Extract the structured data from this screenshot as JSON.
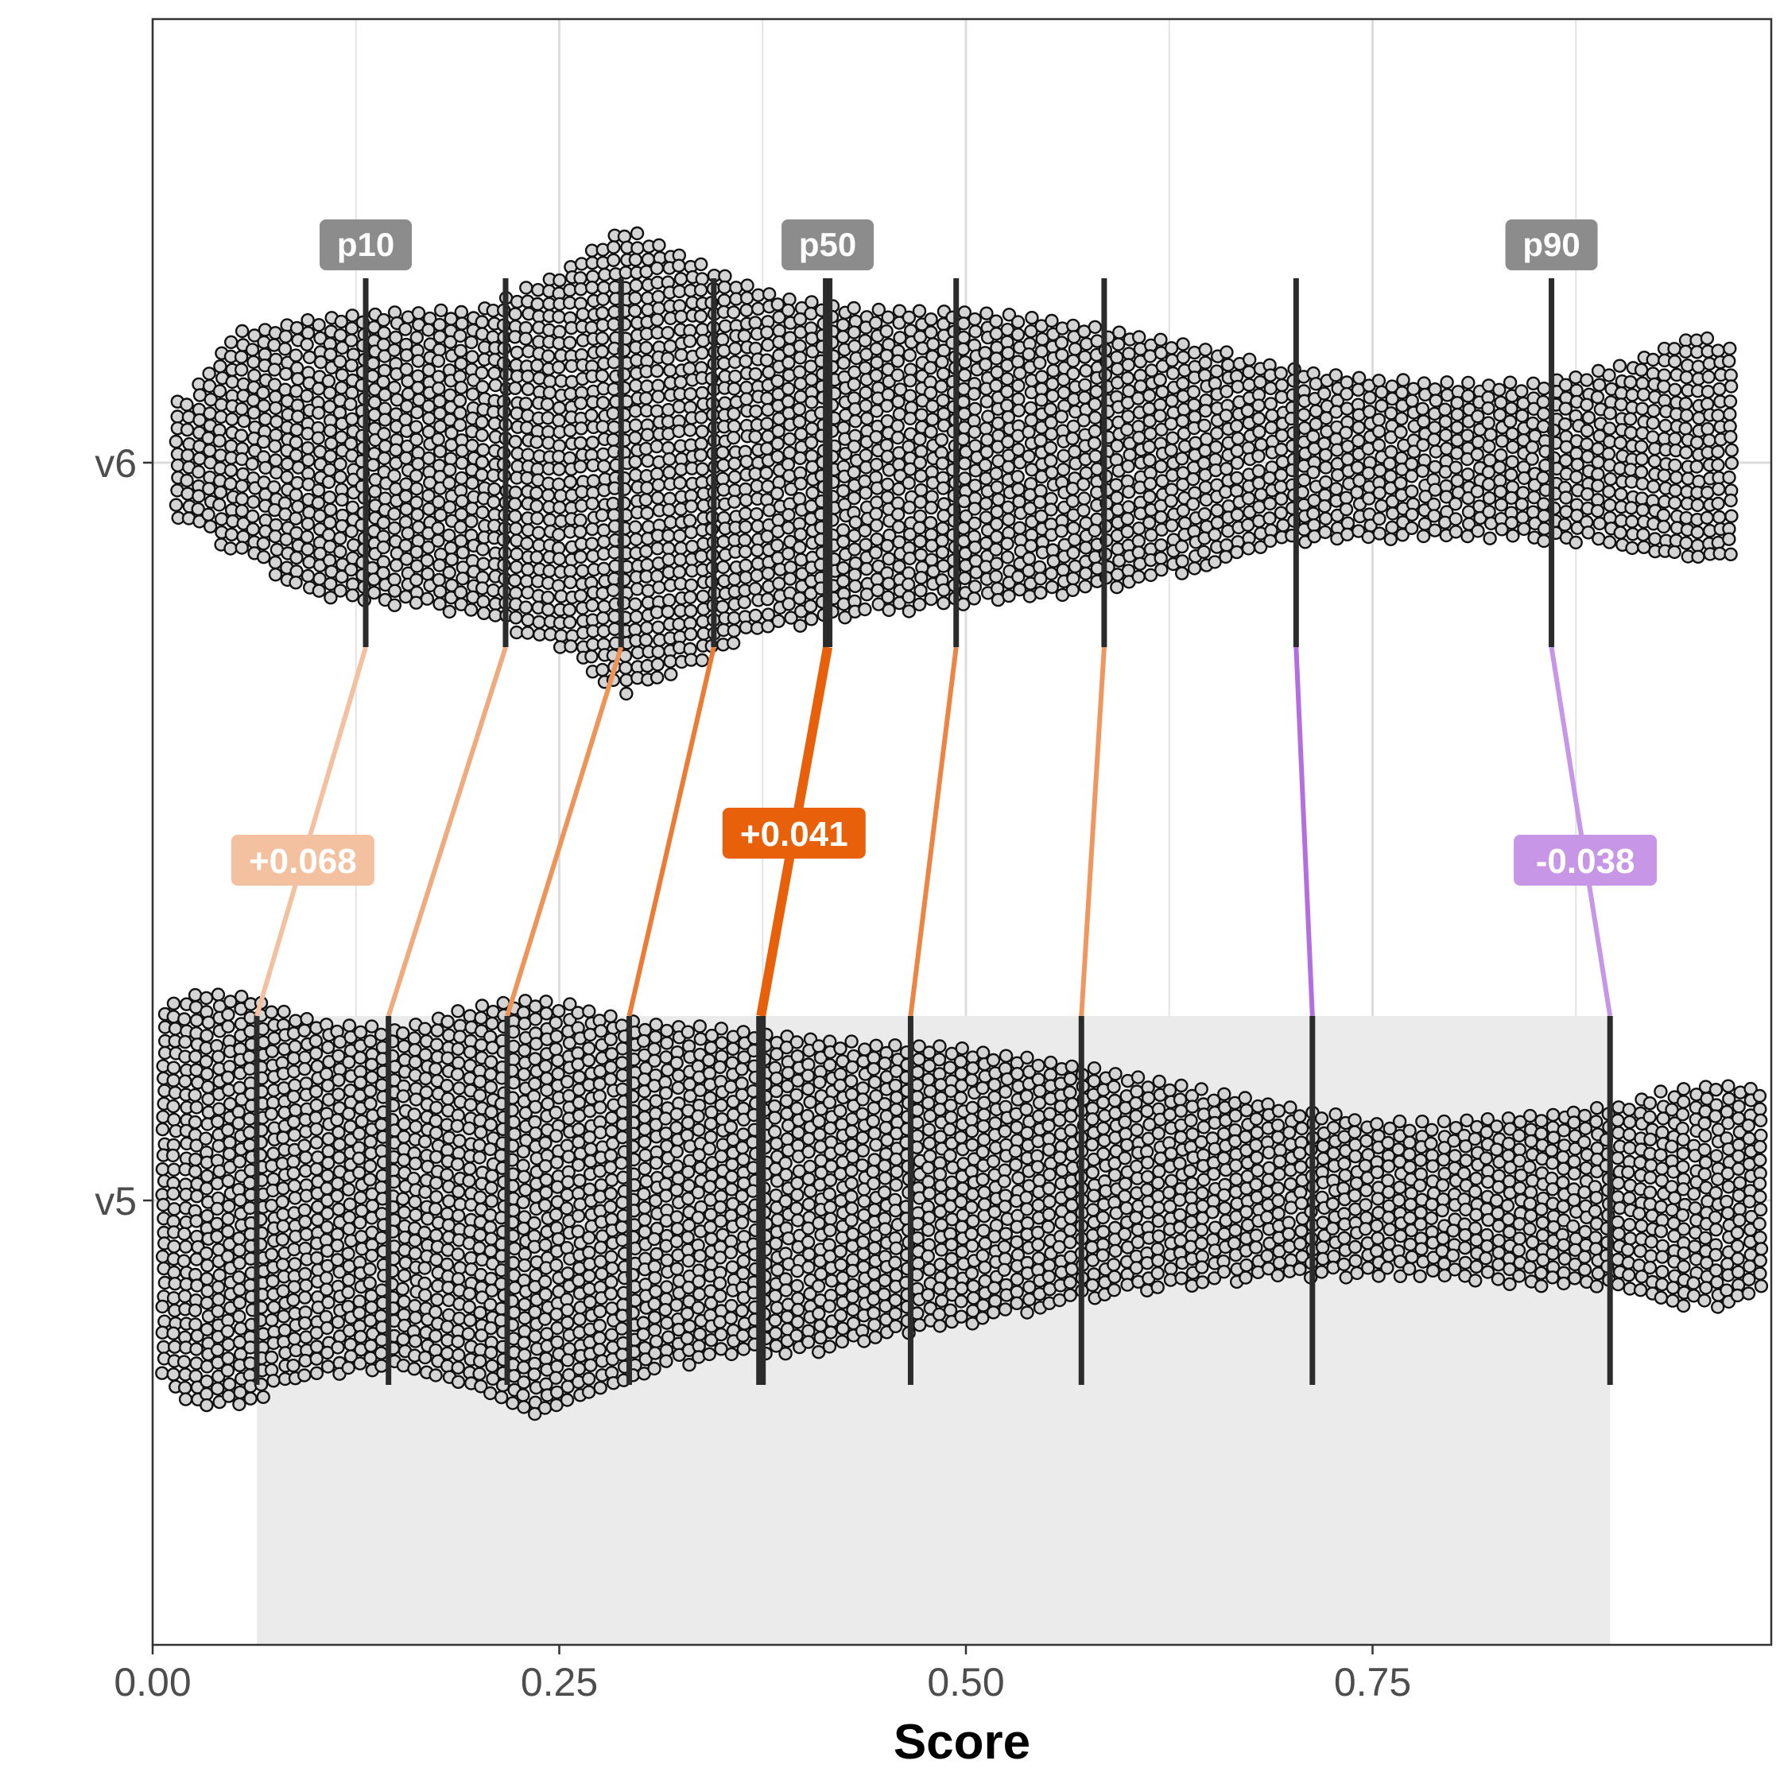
{
  "chart_data": {
    "type": "beeswarm",
    "title": "",
    "xlabel": "Score",
    "ylabel": "",
    "xlim": [
      0,
      1.0
    ],
    "x_ticks": [
      "0.00",
      "0.25",
      "0.50",
      "0.75"
    ],
    "x_tick_values": [
      0,
      0.25,
      0.5,
      0.75
    ],
    "x_minor_grid": [
      0.125,
      0.375,
      0.625,
      0.875
    ],
    "grid": true,
    "categories": [
      "v6",
      "v5"
    ],
    "series": [
      {
        "name": "v6",
        "deciles": [
          0.131,
          0.217,
          0.288,
          0.345,
          0.415,
          0.494,
          0.585,
          0.703,
          0.86
        ],
        "density_x": [
          0.02,
          0.05,
          0.1,
          0.15,
          0.2,
          0.25,
          0.29,
          0.33,
          0.38,
          0.45,
          0.5,
          0.55,
          0.6,
          0.65,
          0.7,
          0.75,
          0.8,
          0.85,
          0.9,
          0.95,
          0.98
        ],
        "density_h": [
          0.4,
          0.85,
          0.95,
          1.0,
          1.0,
          1.25,
          1.55,
          1.35,
          1.1,
          1.0,
          1.0,
          0.95,
          0.85,
          0.75,
          0.62,
          0.55,
          0.52,
          0.52,
          0.62,
          0.85,
          0.7
        ],
        "density_lower_x": [
          0.02,
          0.1,
          0.2,
          0.25,
          0.29,
          0.33,
          0.38,
          0.45,
          0.55,
          0.65,
          0.7,
          0.8,
          0.9,
          0.98
        ],
        "density_lower_h": [
          0.4,
          0.9,
          1.0,
          1.25,
          1.55,
          1.35,
          1.1,
          1.0,
          0.9,
          0.72,
          0.55,
          0.5,
          0.55,
          0.7
        ]
      },
      {
        "name": "v5",
        "deciles": [
          0.064,
          0.145,
          0.218,
          0.293,
          0.374,
          0.466,
          0.571,
          0.713,
          0.896
        ],
        "density_x": [
          0.0,
          0.03,
          0.06,
          0.1,
          0.15,
          0.2,
          0.23,
          0.26,
          0.3,
          0.35,
          0.4,
          0.45,
          0.5,
          0.55,
          0.6,
          0.65,
          0.7,
          0.75,
          0.8,
          0.85,
          0.9,
          0.93,
          0.96,
          1.0
        ],
        "density_h": [
          1.2,
          1.35,
          1.3,
          1.15,
          1.1,
          1.25,
          1.3,
          1.25,
          1.15,
          1.1,
          1.05,
          1.0,
          0.98,
          0.9,
          0.8,
          0.7,
          0.6,
          0.5,
          0.5,
          0.55,
          0.6,
          0.7,
          0.75,
          0.7
        ],
        "density_lower_x": [
          0.0,
          0.03,
          0.06,
          0.1,
          0.15,
          0.2,
          0.23,
          0.26,
          0.3,
          0.35,
          0.4,
          0.45,
          0.5,
          0.55,
          0.6,
          0.65,
          0.7,
          0.75,
          0.8,
          0.85,
          0.9,
          0.93,
          0.96,
          1.0
        ],
        "density_lower_h": [
          1.1,
          1.4,
          1.3,
          1.15,
          1.1,
          1.25,
          1.4,
          1.3,
          1.15,
          1.0,
          1.0,
          0.9,
          0.8,
          0.7,
          0.6,
          0.55,
          0.5,
          0.5,
          0.5,
          0.55,
          0.6,
          0.7,
          0.7,
          0.6
        ]
      }
    ],
    "shaded_band": {
      "series": "v5",
      "from": 0.064,
      "to": 0.896
    },
    "percentile_labels": [
      {
        "text": "p10",
        "decile_index": 0
      },
      {
        "text": "p50",
        "decile_index": 4
      },
      {
        "text": "p90",
        "decile_index": 8
      }
    ],
    "delta_labels": [
      {
        "text": "+0.068",
        "decile_index": 0,
        "color": "#f3c19f"
      },
      {
        "text": "+0.041",
        "decile_index": 4,
        "color": "#e8600a"
      },
      {
        "text": "-0.038",
        "decile_index": 8,
        "color": "#c896e6"
      }
    ],
    "connector_colors": [
      "#f3c19f",
      "#efaa7e",
      "#ed9559",
      "#eb7b35",
      "#e8600a",
      "#ed8443",
      "#f09760",
      "#b46ee0",
      "#c896e6"
    ],
    "colors": {
      "point_fill": "#d4d4d4",
      "point_stroke": "#111111",
      "decile_line": "#2b2b2b",
      "band": "#ebebeb",
      "grid": "#e3e3e3",
      "percentile_label_bg": "#8c8c8c"
    }
  }
}
